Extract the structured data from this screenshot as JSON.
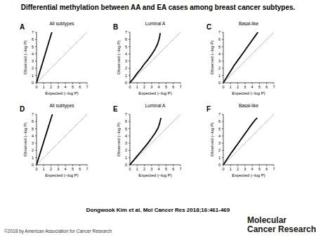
{
  "page": {
    "title": "Differential methylation between AA and EA cases among breast cancer subtypes.",
    "citation": "Dongwook Kim et al. Mol Cancer Res 2018;16:461-469",
    "copyright": "©2018 by American Association for Cancer Research",
    "logo": [
      "Molecular",
      "Cancer Research"
    ]
  },
  "chart_data": [
    {
      "type": "line",
      "annotations": [
        "A"
      ],
      "title": "All subtypes",
      "x_label": "Expected (–log P)",
      "y_label": "Observed (–log P)",
      "xlim": [
        0,
        7
      ],
      "ylim": [
        0,
        7
      ],
      "xticks": [
        0,
        1,
        2,
        3,
        4,
        5,
        6,
        7
      ],
      "yticks": [
        0,
        1,
        2,
        3,
        4,
        5,
        6,
        7
      ],
      "series": [
        {
          "color": "#b0b0b0",
          "line_style": "solid",
          "x": [
            0,
            7
          ],
          "values": [
            0,
            7
          ]
        },
        {
          "color": "#000000",
          "line_style": "solid",
          "x": [
            0,
            0.5,
            1,
            1.5,
            2,
            2.12
          ],
          "values": [
            0,
            1.65,
            3.3,
            4.95,
            6.6,
            7.0
          ]
        }
      ]
    },
    {
      "type": "line",
      "annotations": [
        "B"
      ],
      "title": "Luminal A",
      "x_label": "Expected (–log P)",
      "y_label": "Observed (–log P)",
      "xlim": [
        0,
        7
      ],
      "ylim": [
        0,
        7
      ],
      "xticks": [
        0,
        1,
        2,
        3,
        4,
        5,
        6,
        7
      ],
      "yticks": [
        0,
        1,
        2,
        3,
        4,
        5,
        6,
        7
      ],
      "series": [
        {
          "color": "#b0b0b0",
          "line_style": "solid",
          "x": [
            0,
            7
          ],
          "values": [
            0,
            7
          ]
        },
        {
          "color": "#000000",
          "line_style": "solid",
          "x": [
            0,
            0.5,
            1,
            1.5,
            2,
            2.5,
            3,
            3.5,
            3.8,
            4.0,
            4.1,
            4.2
          ],
          "values": [
            0,
            0.6,
            1.3,
            1.9,
            2.6,
            3.2,
            3.9,
            4.7,
            5.3,
            5.9,
            6.3,
            6.9
          ]
        }
      ]
    },
    {
      "type": "line",
      "annotations": [
        "C"
      ],
      "title": "Basal-like",
      "x_label": "Expected (–log P)",
      "y_label": "Observed (–log P)",
      "xlim": [
        0,
        7
      ],
      "ylim": [
        0,
        7
      ],
      "xticks": [
        0,
        1,
        2,
        3,
        4,
        5,
        6,
        7
      ],
      "yticks": [
        0,
        1,
        2,
        3,
        4,
        5,
        6,
        7
      ],
      "series": [
        {
          "color": "#b0b0b0",
          "line_style": "solid",
          "x": [
            0,
            7
          ],
          "values": [
            0,
            7
          ]
        },
        {
          "color": "#000000",
          "line_style": "solid",
          "x": [
            0,
            0.5,
            1,
            1.5,
            2,
            2.5,
            3,
            3.5,
            4,
            4.5,
            4.8
          ],
          "values": [
            0,
            0.8,
            1.6,
            2.4,
            3.1,
            3.8,
            4.5,
            5.2,
            5.9,
            6.6,
            7.0
          ]
        }
      ]
    },
    {
      "type": "line",
      "annotations": [
        "D"
      ],
      "title": "All subtypes",
      "x_label": "Expected (–log P)",
      "y_label": "Observed (–log P)",
      "xlim": [
        0,
        7
      ],
      "ylim": [
        0,
        7
      ],
      "xticks": [
        0,
        1,
        2,
        3,
        4,
        5,
        6,
        7
      ],
      "yticks": [
        0,
        1,
        2,
        3,
        4,
        5,
        6,
        7
      ],
      "series": [
        {
          "color": "#b0b0b0",
          "line_style": "solid",
          "x": [
            0,
            7
          ],
          "values": [
            0,
            7
          ]
        },
        {
          "color": "#000000",
          "line_style": "solid",
          "x": [
            0,
            0.5,
            1,
            1.5,
            2,
            2.2
          ],
          "values": [
            0,
            1.6,
            3.2,
            4.8,
            6.4,
            7.0
          ]
        }
      ]
    },
    {
      "type": "line",
      "annotations": [
        "E"
      ],
      "title": "Luminal A",
      "x_label": "Expected (–log P)",
      "y_label": "Observed (–log P)",
      "xlim": [
        0,
        7
      ],
      "ylim": [
        0,
        7
      ],
      "xticks": [
        0,
        1,
        2,
        3,
        4,
        5,
        6,
        7
      ],
      "yticks": [
        0,
        1,
        2,
        3,
        4,
        5,
        6,
        7
      ],
      "series": [
        {
          "color": "#b0b0b0",
          "line_style": "solid",
          "x": [
            0,
            7
          ],
          "values": [
            0,
            7
          ]
        },
        {
          "color": "#000000",
          "line_style": "solid",
          "x": [
            0,
            0.5,
            1,
            1.5,
            2,
            2.5,
            3,
            3.5,
            3.9,
            4.1,
            4.3
          ],
          "values": [
            0,
            0.6,
            1.2,
            1.8,
            2.4,
            3.0,
            3.7,
            4.4,
            5.1,
            5.7,
            6.5
          ]
        }
      ]
    },
    {
      "type": "line",
      "annotations": [
        "F"
      ],
      "title": "Basal-like",
      "x_label": "Expected (–log P)",
      "y_label": "Observed (–log P)",
      "xlim": [
        0,
        7
      ],
      "ylim": [
        0,
        7
      ],
      "xticks": [
        0,
        1,
        2,
        3,
        4,
        5,
        6,
        7
      ],
      "yticks": [
        0,
        1,
        2,
        3,
        4,
        5,
        6,
        7
      ],
      "series": [
        {
          "color": "#b0b0b0",
          "line_style": "solid",
          "x": [
            0,
            7
          ],
          "values": [
            0,
            7
          ]
        },
        {
          "color": "#000000",
          "line_style": "solid",
          "x": [
            0,
            0.5,
            1,
            1.5,
            2,
            2.5,
            3,
            3.5,
            4,
            4.4,
            4.7
          ],
          "values": [
            0,
            0.75,
            1.5,
            2.2,
            2.9,
            3.6,
            4.3,
            5.0,
            5.7,
            6.2,
            6.5
          ]
        }
      ]
    }
  ]
}
